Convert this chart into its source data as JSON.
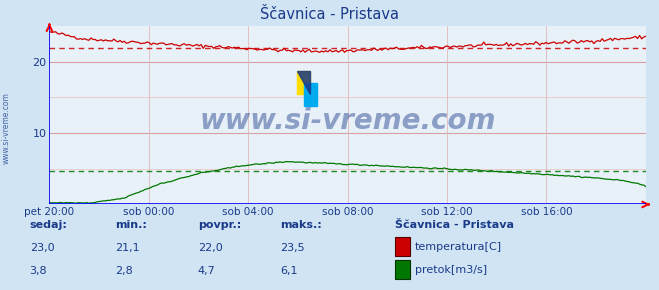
{
  "title": "Ščavnica - Pristava",
  "bg_color": "#d0e4f4",
  "plot_bg_color": "#e8f0f8",
  "x_labels": [
    "pet 20:00",
    "sob 00:00",
    "sob 04:00",
    "sob 08:00",
    "sob 12:00",
    "sob 16:00"
  ],
  "x_ticks_norm": [
    0.0,
    0.1667,
    0.3333,
    0.5,
    0.6667,
    0.8333
  ],
  "ylim": [
    0,
    25
  ],
  "temp_color": "#cc0000",
  "flow_color": "#007700",
  "avg_temp": 22.0,
  "avg_flow": 4.7,
  "watermark": "www.si-vreme.com",
  "watermark_color": "#1a3a8a",
  "label_color": "#1a3a8a",
  "title_color": "#1a3a8a",
  "legend_title": "Ščavnica - Pristava",
  "legend_labels": [
    "temperatura[C]",
    "pretok[m3/s]"
  ],
  "legend_colors": [
    "#cc0000",
    "#007700"
  ],
  "table_headers": [
    "sedaj:",
    "min.:",
    "povpr.:",
    "maks.:"
  ],
  "table_temp": [
    "23,0",
    "21,1",
    "22,0",
    "23,5"
  ],
  "table_flow": [
    "3,8",
    "2,8",
    "4,7",
    "6,1"
  ],
  "sidebar_text": "www.si-vreme.com",
  "grid_v_color": "#e0b8b8",
  "grid_h_major_color": "#d8a0a0",
  "grid_h_minor_color": "#e8c8c8"
}
